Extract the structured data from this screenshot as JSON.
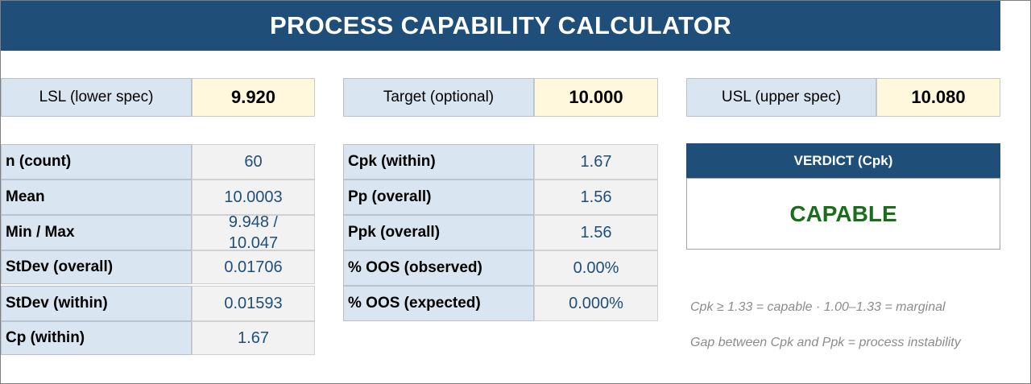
{
  "title": "PROCESS CAPABILITY CALCULATOR",
  "specs": {
    "lsl": {
      "label": "LSL (lower spec)",
      "value": "9.920"
    },
    "target": {
      "label": "Target (optional)",
      "value": "10.000"
    },
    "usl": {
      "label": "USL (upper spec)",
      "value": "10.080"
    }
  },
  "stats": [
    {
      "label": "n (count)",
      "value": "60"
    },
    {
      "label": "Mean",
      "value": "10.0003"
    },
    {
      "label": "Min / Max",
      "value": "9.948 / 10.047"
    },
    {
      "label": "StDev (overall)",
      "value": "0.01706"
    },
    {
      "label": "StDev (within)",
      "value": "0.01593"
    },
    {
      "label": "Cp  (within)",
      "value": "1.67"
    }
  ],
  "indices": [
    {
      "label": "Cpk (within)",
      "value": "1.67"
    },
    {
      "label": "Pp  (overall)",
      "value": "1.56"
    },
    {
      "label": "Ppk (overall)",
      "value": "1.56"
    },
    {
      "label": "% OOS (observed)",
      "value": "0.00%"
    },
    {
      "label": "% OOS (expected)",
      "value": "0.000%"
    }
  ],
  "verdict": {
    "header": "VERDICT (Cpk)",
    "value": "CAPABLE"
  },
  "notes": [
    "Cpk ≥ 1.33 = capable · 1.00–1.33 = marginal",
    "Gap between Cpk and Ppk = process instability"
  ],
  "colors": {
    "header_bg": "#1f4e79",
    "label_bg": "#d9e5f1",
    "input_bg": "#fff8dc",
    "value_bg": "#f2f2f2",
    "verdict_text": "#1a6d1a"
  }
}
